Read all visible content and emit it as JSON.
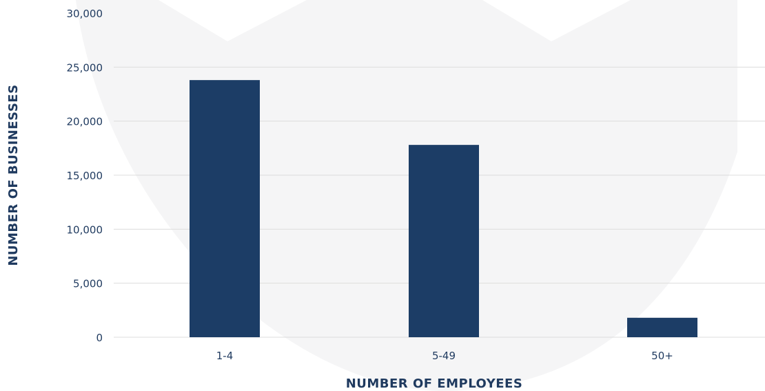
{
  "chart_data": {
    "type": "bar",
    "categories": [
      "1-4",
      "5-49",
      "50+"
    ],
    "values": [
      23800,
      17800,
      1800
    ],
    "title": "",
    "xlabel": "NUMBER OF EMPLOYEES",
    "ylabel": "NUMBER OF BUSINESSES",
    "ylim": [
      0,
      30000
    ],
    "yticks": [
      0,
      5000,
      10000,
      15000,
      20000,
      25000,
      30000
    ],
    "ytick_labels": [
      "0",
      "5,000",
      "10,000",
      "15,000",
      "20,000",
      "25,000",
      "30,000"
    ],
    "grid": true,
    "legend": "none",
    "colors": {
      "bar": "#1c3d66",
      "text": "#1f3a5f",
      "grid": "#dcdcdc",
      "background_watermark": "#f4f4f5"
    }
  }
}
